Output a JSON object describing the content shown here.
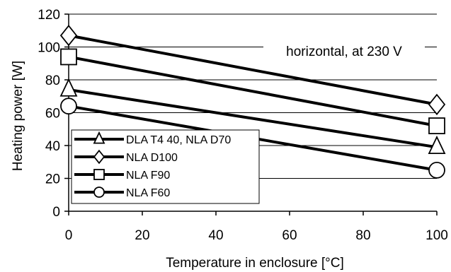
{
  "chart_data": {
    "type": "line",
    "title": "",
    "xlabel": "Temperature in enclosure [°C]",
    "ylabel": "Heating power [W]",
    "xlim": [
      0,
      100
    ],
    "ylim": [
      0,
      120
    ],
    "x_ticks": [
      0,
      20,
      40,
      60,
      80,
      100
    ],
    "y_ticks": [
      0,
      20,
      40,
      60,
      80,
      100,
      120
    ],
    "grid": "horizontal",
    "legend_position": "bottom-left",
    "annotation": "horizontal, at 230 V",
    "series": [
      {
        "name": "DLA T4 40,  NLA D70",
        "marker": "triangle",
        "x": [
          0,
          100
        ],
        "y": [
          74,
          39
        ]
      },
      {
        "name": "NLA D100",
        "marker": "diamond",
        "x": [
          0,
          100
        ],
        "y": [
          107,
          65
        ]
      },
      {
        "name": "NLA F90",
        "marker": "square",
        "x": [
          0,
          100
        ],
        "y": [
          94,
          52
        ]
      },
      {
        "name": "NLA F60",
        "marker": "circle",
        "x": [
          0,
          100
        ],
        "y": [
          64,
          25
        ]
      }
    ]
  }
}
